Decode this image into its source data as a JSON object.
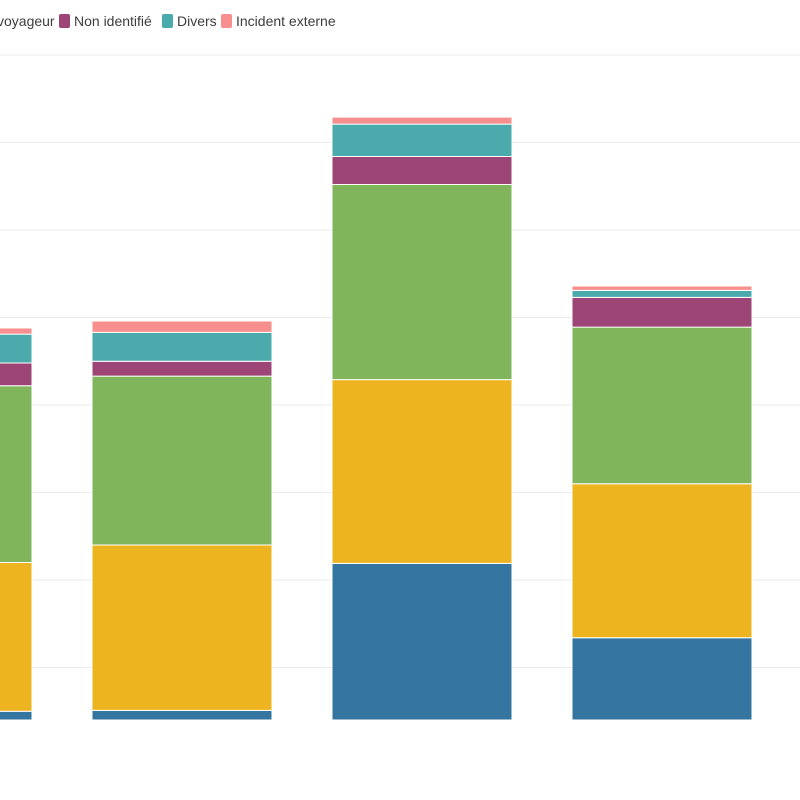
{
  "chart_data": {
    "type": "bar",
    "barmode": "stack",
    "title": "",
    "xlabel": "",
    "ylabel": "",
    "ylim": [
      0,
      76
    ],
    "grid": true,
    "legend": "top-left",
    "series": [
      {
        "name": "",
        "color": "#34769f",
        "values": [
          1.0,
          1.1,
          17.9,
          9.4
        ]
      },
      {
        "name": "",
        "color": "#eeb420",
        "values": [
          17.0,
          18.9,
          21.0,
          17.6
        ]
      },
      {
        "name": "voyageur",
        "color": "#81b55b",
        "values": [
          20.2,
          19.3,
          22.3,
          17.9
        ]
      },
      {
        "name": "Non identifié",
        "color": "#9d4576",
        "values": [
          2.6,
          1.7,
          3.2,
          3.4
        ]
      },
      {
        "name": "Divers",
        "color": "#4baaab",
        "values": [
          3.3,
          3.3,
          3.7,
          0.8
        ]
      },
      {
        "name": "Incident externe",
        "color": "#f78f8e",
        "values": [
          0.7,
          1.3,
          0.8,
          0.5
        ]
      }
    ]
  }
}
